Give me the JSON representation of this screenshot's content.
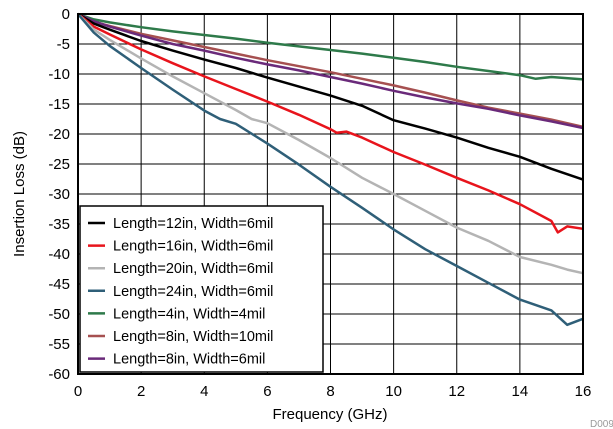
{
  "chart_data": {
    "type": "line",
    "title": "",
    "xlabel": "Frequency (GHz)",
    "ylabel": "Insertion Loss (dB)",
    "xlim": [
      0,
      16
    ],
    "ylim": [
      -60,
      0
    ],
    "xticks": [
      0,
      2,
      4,
      6,
      8,
      10,
      12,
      14,
      16
    ],
    "yticks": [
      0,
      -5,
      -10,
      -15,
      -20,
      -25,
      -30,
      -35,
      -40,
      -45,
      -50,
      -55,
      -60
    ],
    "grid": true,
    "legend_position": "bottom-left",
    "note": "D009",
    "series": [
      {
        "name": "Length=12in, Width=6mil",
        "color": "#000000",
        "x": [
          0,
          0.5,
          1,
          2,
          3,
          4,
          5,
          6,
          7,
          8,
          9,
          10,
          11,
          12,
          13,
          14,
          15,
          16
        ],
        "y": [
          0,
          -1.6,
          -2.6,
          -4.5,
          -6.1,
          -7.6,
          -9.0,
          -10.6,
          -12.1,
          -13.6,
          -15.3,
          -17.7,
          -19.1,
          -20.6,
          -22.3,
          -23.8,
          -25.8,
          -27.6
        ]
      },
      {
        "name": "Length=16in, Width=6mil",
        "color": "#e8141c",
        "x": [
          0,
          0.5,
          1,
          2,
          3,
          4,
          5,
          6,
          7,
          8,
          8.2,
          8.5,
          9,
          10,
          11,
          12,
          13,
          14,
          15,
          15.2,
          15.5,
          16
        ],
        "y": [
          0,
          -2.1,
          -3.4,
          -5.9,
          -8.2,
          -10.4,
          -12.5,
          -14.6,
          -16.8,
          -19.2,
          -19.8,
          -19.6,
          -20.6,
          -23.0,
          -25.1,
          -27.3,
          -29.4,
          -31.7,
          -34.5,
          -36.4,
          -35.4,
          -35.8
        ]
      },
      {
        "name": "Length=20in, Width=6mil",
        "color": "#b4b4b4",
        "x": [
          0,
          0.5,
          1,
          2,
          3,
          4,
          5,
          5.5,
          6,
          7,
          8,
          9,
          10,
          11,
          12,
          13,
          14,
          15,
          15.5,
          16
        ],
        "y": [
          0,
          -2.6,
          -4.3,
          -7.4,
          -10.4,
          -13.2,
          -16.0,
          -17.5,
          -18.2,
          -21.0,
          -24.0,
          -27.3,
          -30.0,
          -32.8,
          -35.6,
          -37.8,
          -40.5,
          -41.8,
          -42.6,
          -43.2
        ]
      },
      {
        "name": "Length=24in, Width=6mil",
        "color": "#2f5f78",
        "x": [
          0,
          0.5,
          1,
          2,
          3,
          4,
          4.5,
          5,
          6,
          7,
          8,
          9,
          10,
          11,
          12,
          13,
          14,
          15,
          15.5,
          16
        ],
        "y": [
          0,
          -3.1,
          -5.3,
          -9.0,
          -12.6,
          -16.1,
          -17.5,
          -18.3,
          -21.6,
          -25.1,
          -28.8,
          -32.3,
          -35.9,
          -39.2,
          -42.0,
          -44.8,
          -47.6,
          -49.4,
          -51.8,
          -50.8
        ]
      },
      {
        "name": "Length=4in, Width=4mil",
        "color": "#2e7a4a",
        "x": [
          0,
          0.5,
          1,
          2,
          3,
          4,
          5,
          6,
          7,
          8,
          9,
          10,
          11,
          12,
          13,
          14,
          14.5,
          15,
          16
        ],
        "y": [
          0,
          -0.9,
          -1.4,
          -2.2,
          -2.9,
          -3.5,
          -4.1,
          -4.8,
          -5.4,
          -6.0,
          -6.6,
          -7.3,
          -8.0,
          -8.8,
          -9.5,
          -10.2,
          -10.8,
          -10.5,
          -10.9
        ]
      },
      {
        "name": "Length=8in, Width=10mil",
        "color": "#a65050",
        "x": [
          0,
          0.5,
          1,
          2,
          3,
          4,
          5,
          6,
          7,
          8,
          9,
          10,
          11,
          12,
          13,
          14,
          15,
          16
        ],
        "y": [
          0,
          -1.3,
          -2.0,
          -3.3,
          -4.4,
          -5.5,
          -6.6,
          -7.7,
          -8.7,
          -9.7,
          -10.8,
          -11.9,
          -13.1,
          -14.4,
          -15.6,
          -16.6,
          -17.6,
          -18.8
        ]
      },
      {
        "name": "Length=8in, Width=6mil",
        "color": "#6a2a7a",
        "x": [
          0,
          0.5,
          1,
          2,
          3,
          4,
          5,
          6,
          7,
          8,
          9,
          10,
          11,
          12,
          13,
          14,
          15,
          16
        ],
        "y": [
          0,
          -1.2,
          -2.1,
          -3.6,
          -5.0,
          -6.1,
          -7.3,
          -8.4,
          -9.4,
          -10.5,
          -11.6,
          -12.8,
          -13.9,
          -14.9,
          -15.8,
          -16.9,
          -17.9,
          -19.0
        ]
      }
    ]
  }
}
